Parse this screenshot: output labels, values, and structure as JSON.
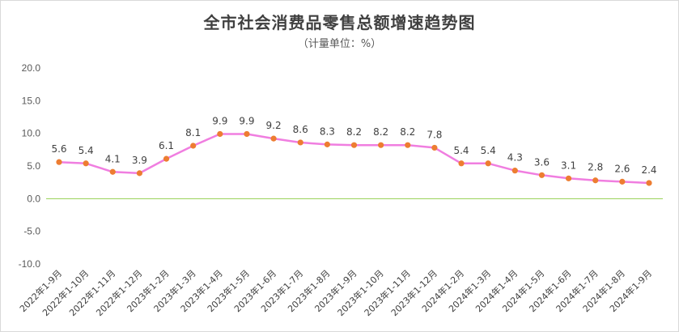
{
  "chart_data": {
    "type": "line",
    "title": "全市社会消费品零售总额增速趋势图",
    "subtitle": "（计量单位：%）",
    "xlabel": "",
    "ylabel": "",
    "ylim": [
      -10,
      20
    ],
    "yticks": [
      "20.0",
      "15.0",
      "10.0",
      "5.0",
      "0.0",
      "-5.0",
      "-10.0"
    ],
    "grid": false,
    "categories": [
      "2022年1-9月",
      "2022年1-10月",
      "2022年1-11月",
      "2022年1-12月",
      "2023年1-2月",
      "2023年1-3月",
      "2023年1-4月",
      "2023年1-5月",
      "2023年1-6月",
      "2023年1-7月",
      "2023年1-8月",
      "2023年1-9月",
      "2023年1-10月",
      "2023年1-11月",
      "2023年1-12月",
      "2024年1-2月",
      "2024年1-3月",
      "2024年1-4月",
      "2024年1-5月",
      "2024年1-6月",
      "2024年1-7月",
      "2024年1-8月",
      "2024年1-9月"
    ],
    "series": [
      {
        "values": [
          5.6,
          5.4,
          4.1,
          3.9,
          6.1,
          8.1,
          9.9,
          9.9,
          9.2,
          8.6,
          8.3,
          8.2,
          8.2,
          8.2,
          7.8,
          5.4,
          5.4,
          4.3,
          3.6,
          3.1,
          2.8,
          2.6,
          2.4
        ],
        "labels": [
          "5.6",
          "5.4",
          "4.1",
          "3.9",
          "6.1",
          "8.1",
          "9.9",
          "9.9",
          "9.2",
          "8.6",
          "8.3",
          "8.2",
          "8.2",
          "8.2",
          "7.8",
          "5.4",
          "5.4",
          "4.3",
          "3.6",
          "3.1",
          "2.8",
          "2.6",
          "2.4"
        ],
        "line_color": "#f07ee0",
        "marker_color": "#ed7d31"
      }
    ],
    "zero_line_color": "#92d050"
  }
}
